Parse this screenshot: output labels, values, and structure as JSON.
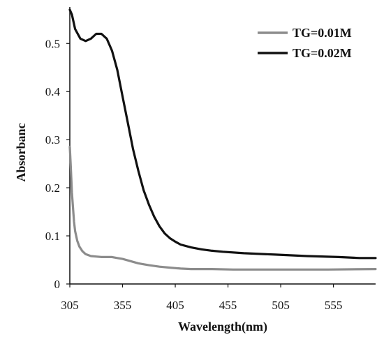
{
  "chart_data": {
    "type": "line",
    "xlabel": "Wavelength(nm)",
    "ylabel": "Absorbanc",
    "xlim": [
      305,
      595
    ],
    "ylim": [
      0,
      0.57
    ],
    "xticks": [
      305,
      355,
      405,
      455,
      505,
      555
    ],
    "yticks": [
      0,
      0.1,
      0.2,
      0.3,
      0.4,
      0.5
    ],
    "ytick_labels": [
      "0",
      "0.1",
      "0.2",
      "0.3",
      "0.4",
      "0.5"
    ],
    "grid": false,
    "legend_position": "top-right",
    "series": [
      {
        "name": "TG=0.01M",
        "color": "#8c8c8c",
        "x": [
          305,
          306,
          307,
          308,
          309,
          310,
          312,
          314,
          317,
          320,
          325,
          330,
          335,
          340,
          345,
          350,
          355,
          360,
          365,
          370,
          380,
          390,
          400,
          410,
          420,
          440,
          460,
          500,
          550,
          595
        ],
        "y": [
          0.285,
          0.24,
          0.19,
          0.16,
          0.13,
          0.11,
          0.09,
          0.078,
          0.068,
          0.062,
          0.058,
          0.057,
          0.056,
          0.056,
          0.056,
          0.054,
          0.052,
          0.049,
          0.046,
          0.043,
          0.039,
          0.036,
          0.034,
          0.032,
          0.031,
          0.031,
          0.03,
          0.03,
          0.03,
          0.031
        ]
      },
      {
        "name": "TG=0.02M",
        "color": "#111111",
        "x": [
          305,
          307,
          310,
          315,
          320,
          325,
          330,
          335,
          340,
          345,
          350,
          355,
          360,
          365,
          370,
          375,
          380,
          385,
          390,
          395,
          400,
          405,
          410,
          420,
          430,
          440,
          450,
          470,
          500,
          530,
          560,
          580,
          595
        ],
        "y": [
          0.57,
          0.56,
          0.53,
          0.51,
          0.505,
          0.51,
          0.52,
          0.52,
          0.51,
          0.485,
          0.445,
          0.39,
          0.335,
          0.28,
          0.235,
          0.195,
          0.165,
          0.14,
          0.12,
          0.105,
          0.095,
          0.088,
          0.082,
          0.076,
          0.072,
          0.069,
          0.067,
          0.064,
          0.061,
          0.058,
          0.056,
          0.054,
          0.054
        ]
      }
    ]
  }
}
